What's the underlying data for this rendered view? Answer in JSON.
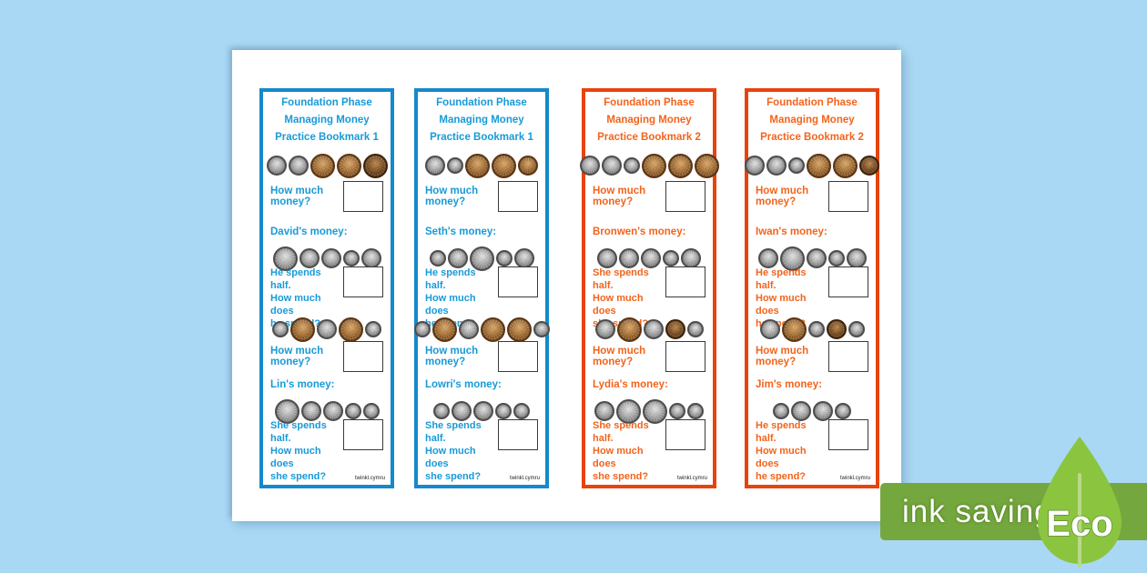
{
  "page": {
    "background_color": "#a9d8f5",
    "sheet_color": "#ffffff"
  },
  "eco": {
    "banner_label": "ink saving",
    "leaf_label": "Eco",
    "banner_color": "#74a73d",
    "leaf_color": "#8bc53f"
  },
  "bookmarks": [
    {
      "theme": "blue",
      "border_color": "#1589cb",
      "text_color": "#189ad8",
      "title_lines": [
        "Foundation Phase",
        "Managing Money",
        "Practice Bookmark 1"
      ],
      "q1": "How much money?",
      "name1": "David's money:",
      "spends1": [
        "He spends half.",
        "How much does",
        "he spend?"
      ],
      "q2": "How much money?",
      "name2": "Lin's money:",
      "spends2": [
        "She spends half.",
        "How much does",
        "she spend?"
      ],
      "footer": "twinkl.cymru",
      "coin_rows": [
        [
          "silver-md",
          "silver-md",
          "copper-lg",
          "copper-lg",
          "copperdark-lg"
        ],
        [
          "silver-lg",
          "silver-md",
          "silver-md",
          "silver-sm",
          "silver-md"
        ],
        [
          "silver-sm",
          "copper-lg",
          "silver-md",
          "copper-lg",
          "silver-sm"
        ],
        [
          "silver-lg",
          "silver-md",
          "silver-md",
          "silver-sm",
          "silver-sm"
        ]
      ]
    },
    {
      "theme": "blue",
      "border_color": "#1589cb",
      "text_color": "#189ad8",
      "title_lines": [
        "Foundation Phase",
        "Managing Money",
        "Practice Bookmark 1"
      ],
      "q1": "How much money?",
      "name1": "Seth's money:",
      "spends1": [
        "He spends half.",
        "How much does",
        "he spend?"
      ],
      "q2": "How much money?",
      "name2": "Lowri's money:",
      "spends2": [
        "She spends half.",
        "How much does",
        "she spend?"
      ],
      "footer": "twinkl.cymru",
      "coin_rows": [
        [
          "silver-md",
          "silver-sm",
          "copper-lg",
          "copper-lg",
          "copper-md"
        ],
        [
          "silver-sm",
          "silver-md",
          "silver-lg",
          "silver-sm",
          "silver-md"
        ],
        [
          "silver-sm",
          "copper-lg",
          "silver-md",
          "copper-lg",
          "copper-lg",
          "silver-sm"
        ],
        [
          "silver-sm",
          "silver-md",
          "silver-md",
          "silver-sm",
          "silver-sm"
        ]
      ]
    },
    {
      "theme": "red",
      "border_color": "#e8430c",
      "text_color": "#f2641c",
      "title_lines": [
        "Foundation Phase",
        "Managing Money",
        "Practice Bookmark 2"
      ],
      "q1": "How much money?",
      "name1": "Bronwen's money:",
      "spends1": [
        "She spends half.",
        "How much does",
        "she spend?"
      ],
      "q2": "How much money?",
      "name2": "Lydia's money:",
      "spends2": [
        "She spends half.",
        "How much does",
        "she spend?"
      ],
      "footer": "twinkl.cymru",
      "coin_rows": [
        [
          "silver-md",
          "silver-md",
          "silver-sm",
          "copper-lg",
          "copper-lg",
          "copper-lg"
        ],
        [
          "silver-md",
          "silver-md",
          "silver-md",
          "silver-sm",
          "silver-md"
        ],
        [
          "silver-md",
          "copper-lg",
          "silver-md",
          "copperdark-md",
          "silver-sm"
        ],
        [
          "silver-md",
          "silver-lg",
          "silver-lg",
          "silver-sm",
          "silver-sm"
        ]
      ]
    },
    {
      "theme": "red",
      "border_color": "#e8430c",
      "text_color": "#f2641c",
      "title_lines": [
        "Foundation Phase",
        "Managing Money",
        "Practice Bookmark 2"
      ],
      "q1": "How much money?",
      "name1": "Iwan's money:",
      "spends1": [
        "He spends half.",
        "How much does",
        "he spend?"
      ],
      "q2": "How much money?",
      "name2": "Jim's money:",
      "spends2": [
        "He spends half.",
        "How much does",
        "he spend?"
      ],
      "footer": "twinkl.cymru",
      "coin_rows": [
        [
          "silver-md",
          "silver-md",
          "silver-sm",
          "copper-lg",
          "copper-lg",
          "copperdark-md"
        ],
        [
          "silver-md",
          "silver-lg",
          "silver-md",
          "silver-sm",
          "silver-md"
        ],
        [
          "silver-md",
          "copper-lg",
          "silver-sm",
          "copperdark-md",
          "silver-sm"
        ],
        [
          "silver-sm",
          "silver-md",
          "silver-md",
          "silver-sm"
        ]
      ]
    }
  ]
}
